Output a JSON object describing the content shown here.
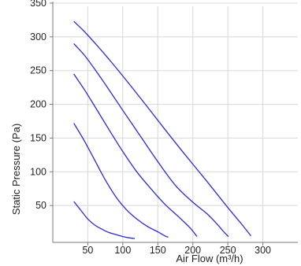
{
  "chart_data": {
    "type": "line",
    "title": "",
    "xlabel": "Air Flow (m³/h)",
    "ylabel": "Static Pressure (Pa)",
    "xlim": [
      0,
      350
    ],
    "ylim": [
      0,
      350
    ],
    "x_ticks": [
      "50",
      "100",
      "150",
      "200",
      "250",
      "300"
    ],
    "y_ticks": [
      "50",
      "100",
      "150",
      "200",
      "250",
      "300",
      "350"
    ],
    "grid": true,
    "legend": "none",
    "line_color": "#2b2bd6",
    "grid_color": "#d8d8d8",
    "axis_color": "#777777",
    "series": [
      {
        "points": [
          [
            30,
            323
          ],
          [
            45,
            308
          ],
          [
            60,
            291
          ],
          [
            80,
            267
          ],
          [
            100,
            242
          ],
          [
            130,
            203
          ],
          [
            160,
            163
          ],
          [
            190,
            124
          ],
          [
            220,
            86
          ],
          [
            250,
            47
          ],
          [
            270,
            22
          ],
          [
            283,
            5
          ]
        ]
      },
      {
        "points": [
          [
            30,
            290
          ],
          [
            45,
            273
          ],
          [
            60,
            252
          ],
          [
            80,
            222
          ],
          [
            100,
            191
          ],
          [
            125,
            153
          ],
          [
            150,
            115
          ],
          [
            175,
            80
          ],
          [
            200,
            55
          ],
          [
            220,
            38
          ],
          [
            235,
            22
          ],
          [
            245,
            10
          ],
          [
            251,
            4
          ]
        ]
      },
      {
        "points": [
          [
            30,
            245
          ],
          [
            45,
            222
          ],
          [
            60,
            197
          ],
          [
            80,
            163
          ],
          [
            100,
            130
          ],
          [
            120,
            100
          ],
          [
            140,
            75
          ],
          [
            160,
            52
          ],
          [
            180,
            33
          ],
          [
            195,
            18
          ],
          [
            203,
            8
          ],
          [
            206,
            4
          ]
        ]
      },
      {
        "points": [
          [
            30,
            172
          ],
          [
            45,
            146
          ],
          [
            60,
            117
          ],
          [
            75,
            88
          ],
          [
            90,
            63
          ],
          [
            105,
            44
          ],
          [
            120,
            30
          ],
          [
            135,
            19
          ],
          [
            150,
            11
          ],
          [
            160,
            5
          ],
          [
            165,
            3
          ]
        ]
      },
      {
        "points": [
          [
            30,
            56
          ],
          [
            40,
            43
          ],
          [
            50,
            30
          ],
          [
            60,
            21
          ],
          [
            70,
            15
          ],
          [
            80,
            10
          ],
          [
            90,
            7
          ],
          [
            100,
            4
          ],
          [
            110,
            2
          ],
          [
            117,
            1
          ]
        ]
      }
    ]
  }
}
